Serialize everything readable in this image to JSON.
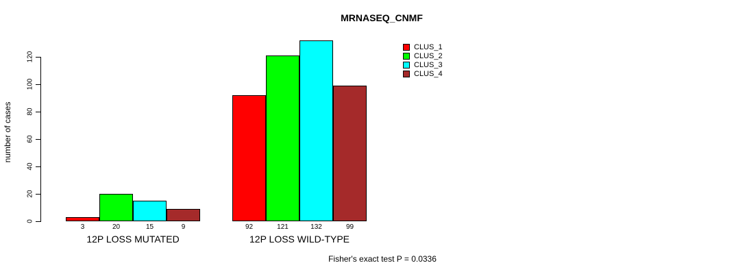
{
  "chart_data": {
    "type": "bar",
    "title": "MRNASEQ_CNMF",
    "ylabel": "number of cases",
    "xlabel": "",
    "categories": [
      "12P LOSS MUTATED",
      "12P LOSS WILD-TYPE"
    ],
    "series": [
      {
        "name": "CLUS_1",
        "color": "#ff0000",
        "values": [
          3,
          92
        ]
      },
      {
        "name": "CLUS_2",
        "color": "#00ff00",
        "values": [
          20,
          121
        ]
      },
      {
        "name": "CLUS_3",
        "color": "#00ffff",
        "values": [
          15,
          132
        ]
      },
      {
        "name": "CLUS_4",
        "color": "#a52a2a",
        "values": [
          9,
          99
        ]
      }
    ],
    "yticks": [
      0,
      20,
      40,
      60,
      80,
      100,
      120
    ],
    "ylim": [
      0,
      140
    ],
    "bar_value_labels": true,
    "grid": false,
    "legend_position": "top-right",
    "annotation": "Fisher's exact test P = 0.0336"
  }
}
